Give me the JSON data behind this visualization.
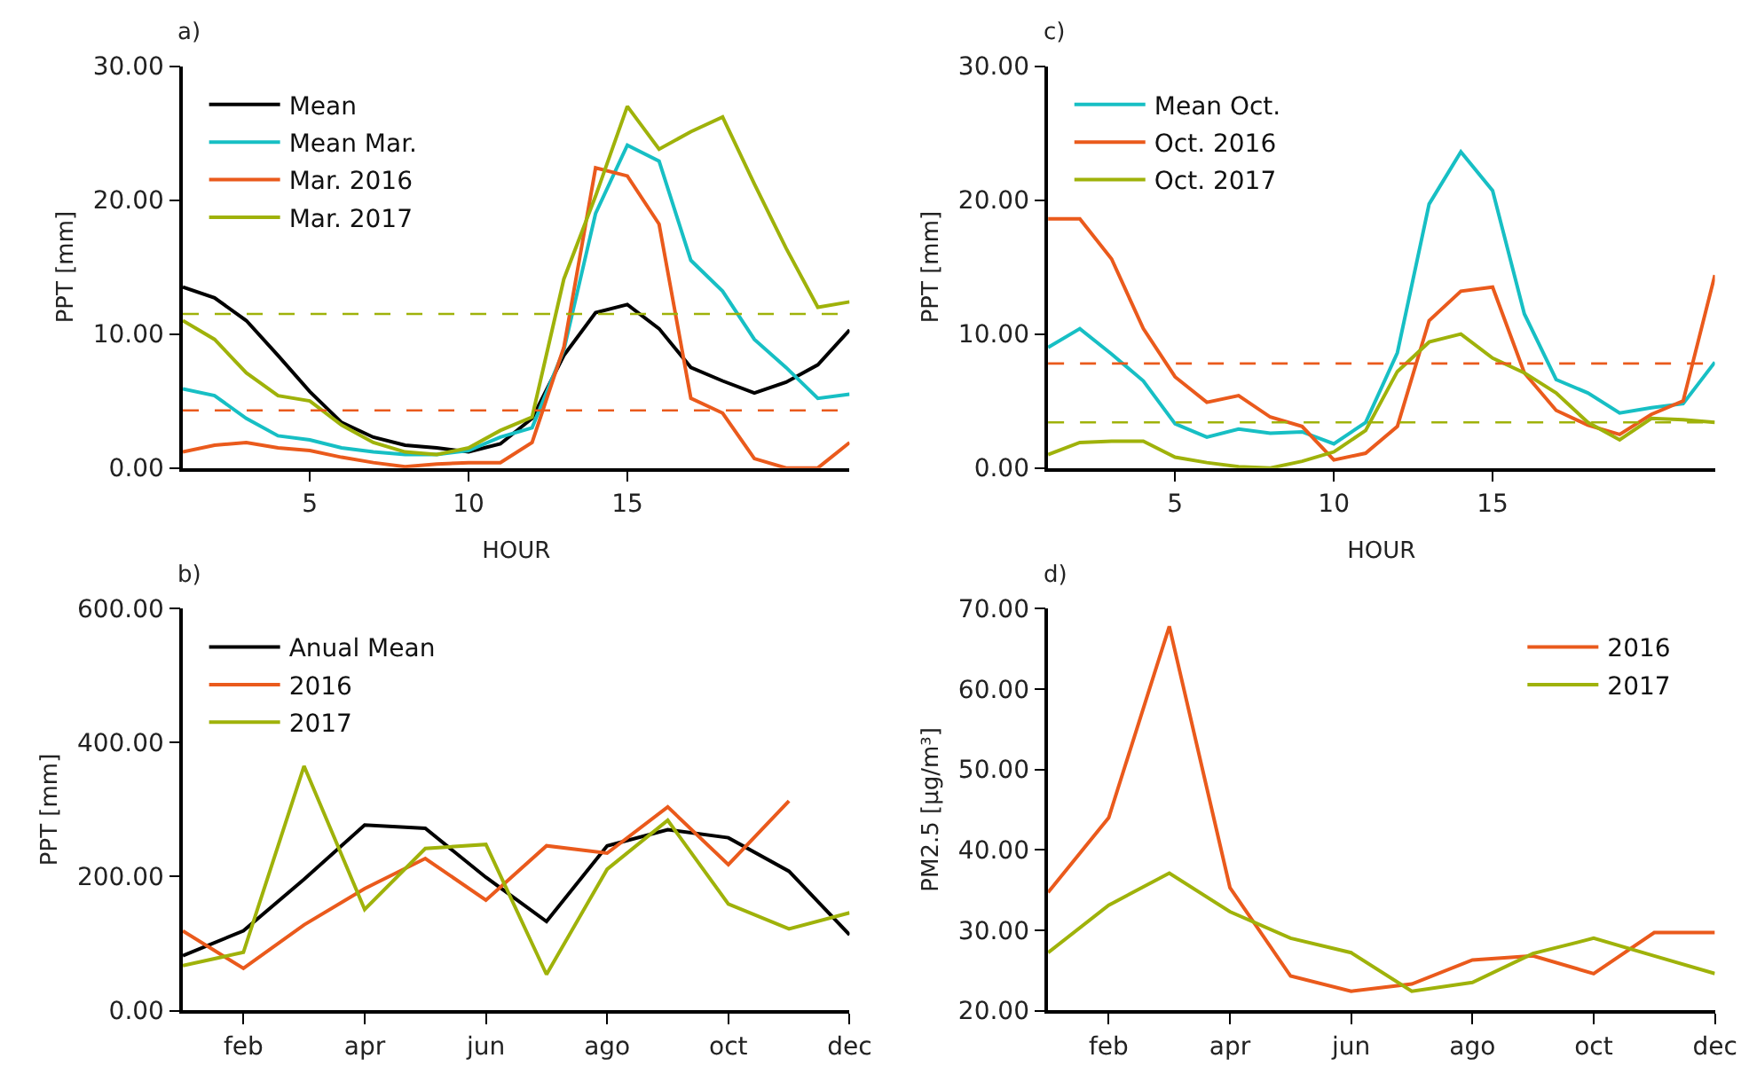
{
  "chart_data": [
    {
      "type": "line",
      "title": "a)",
      "xlabel": "HOUR",
      "ylabel": "PPT [mm]",
      "x": [
        1,
        2,
        3,
        4,
        5,
        6,
        7,
        8,
        9,
        10,
        11,
        12,
        13,
        14,
        15,
        16,
        17,
        18,
        19,
        20,
        21,
        22
      ],
      "series": [
        {
          "name": "Mean",
          "color": "#000000",
          "values": [
            13.5,
            12.7,
            11.0,
            8.4,
            5.7,
            3.4,
            2.3,
            1.7,
            1.5,
            1.2,
            1.8,
            3.7,
            8.4,
            11.6,
            12.2,
            10.4,
            7.5,
            6.5,
            5.6,
            6.4,
            7.7,
            10.3
          ]
        },
        {
          "name": "Mean Mar.",
          "color": "#17bfc4",
          "values": [
            5.9,
            5.4,
            3.7,
            2.4,
            2.1,
            1.5,
            1.2,
            1.0,
            1.0,
            1.3,
            2.3,
            3.0,
            8.8,
            19.0,
            24.1,
            22.9,
            15.5,
            13.2,
            9.6,
            7.5,
            5.2,
            5.5
          ]
        },
        {
          "name": "Mar. 2016",
          "color": "#ea5a1c",
          "values": [
            1.2,
            1.7,
            1.9,
            1.5,
            1.3,
            0.8,
            0.4,
            0.1,
            0.3,
            0.4,
            0.4,
            1.9,
            9.0,
            22.4,
            21.8,
            18.2,
            5.2,
            4.1,
            0.7,
            0.0,
            0.0,
            1.9
          ]
        },
        {
          "name": "Mar. 2017",
          "color": "#9fb20a",
          "values": [
            11.0,
            9.6,
            7.1,
            5.4,
            5.0,
            3.2,
            1.9,
            1.2,
            1.0,
            1.5,
            2.8,
            3.8,
            14.1,
            20.3,
            27.0,
            23.8,
            25.1,
            26.2,
            21.2,
            16.4,
            12.0,
            12.4
          ]
        }
      ],
      "ref_lines": [
        {
          "axis": "y",
          "value": 11.5,
          "color": "#9fb20a",
          "line_style": "dashed"
        },
        {
          "axis": "y",
          "value": 4.3,
          "color": "#ea5a1c",
          "line_style": "dashed"
        }
      ],
      "xlim": [
        1,
        22
      ],
      "xticks": [
        5,
        10,
        15
      ],
      "ylim": [
        0,
        30
      ],
      "yticks": [
        {
          "value": 0,
          "label": "0.00"
        },
        {
          "value": 10,
          "label": "10.00"
        },
        {
          "value": 20,
          "label": "20.00"
        },
        {
          "value": 30,
          "label": "30.00"
        }
      ],
      "legend": "top left",
      "marker": "none",
      "line_style": "solid"
    },
    {
      "type": "line",
      "title": "c)",
      "xlabel": "HOUR",
      "ylabel": "PPT [mm]",
      "x": [
        1,
        2,
        3,
        4,
        5,
        6,
        7,
        8,
        9,
        10,
        11,
        12,
        13,
        14,
        15,
        16,
        17,
        18,
        19,
        20,
        21,
        22
      ],
      "series": [
        {
          "name": "Mean Oct.",
          "color": "#17bfc4",
          "values": [
            9.0,
            10.4,
            8.5,
            6.5,
            3.3,
            2.3,
            2.9,
            2.6,
            2.7,
            1.8,
            3.4,
            8.6,
            19.7,
            23.6,
            20.7,
            11.5,
            6.6,
            5.6,
            4.1,
            4.5,
            4.8,
            7.9
          ]
        },
        {
          "name": "Oct. 2016",
          "color": "#ea5a1c",
          "values": [
            18.6,
            18.6,
            15.6,
            10.4,
            6.8,
            4.9,
            5.4,
            3.8,
            3.1,
            0.6,
            1.1,
            3.1,
            11.0,
            13.2,
            13.5,
            7.1,
            4.3,
            3.2,
            2.5,
            4.0,
            5.0,
            14.4
          ]
        },
        {
          "name": "Oct. 2017",
          "color": "#9fb20a",
          "values": [
            1.0,
            1.9,
            2.0,
            2.0,
            0.8,
            0.4,
            0.1,
            0.0,
            0.5,
            1.2,
            2.8,
            7.2,
            9.4,
            10.0,
            8.2,
            7.1,
            5.6,
            3.4,
            2.1,
            3.7,
            3.6,
            3.4
          ]
        }
      ],
      "ref_lines": [
        {
          "axis": "y",
          "value": 7.8,
          "color": "#ea5a1c",
          "line_style": "dashed"
        },
        {
          "axis": "y",
          "value": 3.4,
          "color": "#9fb20a",
          "line_style": "dashed"
        }
      ],
      "xlim": [
        1,
        22
      ],
      "xticks": [
        5,
        10,
        15
      ],
      "ylim": [
        0,
        30
      ],
      "yticks": [
        {
          "value": 0,
          "label": "0.00"
        },
        {
          "value": 10,
          "label": "10.00"
        },
        {
          "value": 20,
          "label": "20.00"
        },
        {
          "value": 30,
          "label": "30.00"
        }
      ],
      "legend": "top left",
      "marker": "none",
      "line_style": "solid"
    },
    {
      "type": "line",
      "title": "b)",
      "ylabel": "PPT [mm]",
      "categories": [
        null,
        "feb",
        null,
        "apr",
        null,
        "jun",
        null,
        "ago",
        null,
        "oct",
        null,
        "dec"
      ],
      "series": [
        {
          "name": "Anual Mean",
          "color": "#000000",
          "values": [
            82,
            119,
            196,
            277,
            272,
            199,
            133,
            246,
            270,
            258,
            208,
            113
          ]
        },
        {
          "name": "2016",
          "color": "#ea5a1c",
          "values": [
            119,
            63,
            128,
            182,
            227,
            165,
            246,
            235,
            304,
            218,
            313,
            null
          ]
        },
        {
          "name": "2017",
          "color": "#9fb20a",
          "values": [
            67,
            87,
            365,
            151,
            242,
            248,
            54,
            211,
            284,
            159,
            122,
            146
          ]
        }
      ],
      "ylim": [
        0,
        600
      ],
      "yticks": [
        {
          "value": 0,
          "label": "0.00"
        },
        {
          "value": 200,
          "label": "200.00"
        },
        {
          "value": 400,
          "label": "400.00"
        },
        {
          "value": 600,
          "label": "600.00"
        }
      ],
      "legend": "top left",
      "marker": "none",
      "line_style": "solid"
    },
    {
      "type": "line",
      "title": "d)",
      "ylabel": "PM2.5 [µg/m³]",
      "categories": [
        null,
        "feb",
        null,
        "apr",
        null,
        "jun",
        null,
        "ago",
        null,
        "oct",
        null,
        "dec"
      ],
      "series": [
        {
          "name": "2016",
          "color": "#ea5a1c",
          "values": [
            34.7,
            44.0,
            67.8,
            35.3,
            24.3,
            22.4,
            23.3,
            26.3,
            26.8,
            24.6,
            29.7,
            29.7
          ]
        },
        {
          "name": "2017",
          "color": "#9fb20a",
          "values": [
            27.2,
            33.1,
            37.1,
            32.3,
            29.0,
            27.2,
            22.4,
            23.5,
            27.1,
            29.0,
            26.8,
            24.6
          ]
        }
      ],
      "ylim": [
        20,
        70
      ],
      "yticks": [
        {
          "value": 20,
          "label": "20.00"
        },
        {
          "value": 30,
          "label": "30.00"
        },
        {
          "value": 40,
          "label": "40.00"
        },
        {
          "value": 50,
          "label": "50.00"
        },
        {
          "value": 60,
          "label": "60.00"
        },
        {
          "value": 70,
          "label": "70.00"
        }
      ],
      "legend": "top right",
      "marker": "none",
      "line_style": "solid"
    }
  ]
}
